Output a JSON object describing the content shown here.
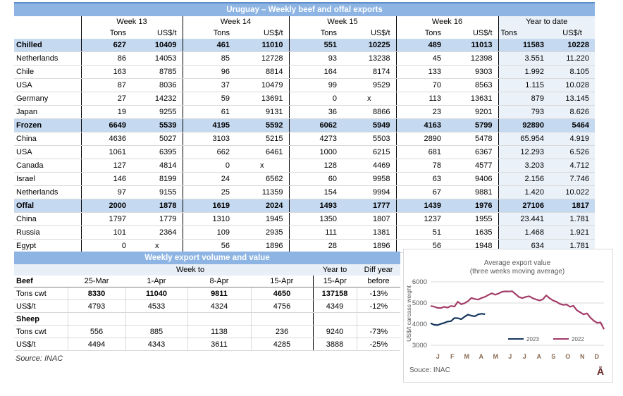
{
  "colors": {
    "title-bar": "#8DB4E2",
    "title-bar-top": "#5E8FCB",
    "title-text": "#FFFFFF",
    "section-row": "#C5D9F1",
    "ytd-bg": "#EAF1F9",
    "t2-header-bg": "#E8EFF7",
    "row-line": "#D9D9D9",
    "col-line": "#808080",
    "dark-line": "#000000",
    "chart-border": "#D9D9D9",
    "chart-text": "#595959",
    "month-label": "#8A6C54",
    "glyph": "#632423",
    "grid-line": "#D9D9D9"
  },
  "table1": {
    "title": "Uruguay – Weekly beef and offal exports",
    "week_headers": [
      "Week 13",
      "Week 14",
      "Week 15",
      "Week 16",
      "Year to date"
    ],
    "unit_headers": {
      "tons": "Tons",
      "usd": "US$/t"
    },
    "rows": [
      {
        "label": "Chilled",
        "type": "section",
        "cells": [
          "627",
          "10409",
          "461",
          "11010",
          "551",
          "10225",
          "489",
          "11013",
          "11583",
          "10228"
        ]
      },
      {
        "label": "Netherlands",
        "cells": [
          "86",
          "14053",
          "85",
          "12728",
          "93",
          "13238",
          "45",
          "12398",
          "3.551",
          "11.220"
        ]
      },
      {
        "label": "Chile",
        "cells": [
          "163",
          "8785",
          "96",
          "8814",
          "164",
          "8174",
          "133",
          "9303",
          "1.992",
          "8.105"
        ]
      },
      {
        "label": "USA",
        "cells": [
          "87",
          "8036",
          "37",
          "10479",
          "99",
          "9529",
          "70",
          "8563",
          "1.115",
          "10.028"
        ]
      },
      {
        "label": "Germany",
        "cells": [
          "27",
          "14232",
          "59",
          "13691",
          "0",
          "x",
          "113",
          "13631",
          "879",
          "13.145"
        ]
      },
      {
        "label": "Japan",
        "cells": [
          "19",
          "9255",
          "61",
          "9131",
          "36",
          "8866",
          "23",
          "9201",
          "793",
          "8.626"
        ]
      },
      {
        "label": "Frozen",
        "type": "section",
        "cells": [
          "6649",
          "5539",
          "4195",
          "5592",
          "6062",
          "5949",
          "4163",
          "5799",
          "92890",
          "5464"
        ]
      },
      {
        "label": "China",
        "cells": [
          "4636",
          "5027",
          "3103",
          "5215",
          "4273",
          "5503",
          "2890",
          "5478",
          "65.954",
          "4.919"
        ]
      },
      {
        "label": "USA",
        "cells": [
          "1061",
          "6395",
          "662",
          "6461",
          "1000",
          "6215",
          "681",
          "6367",
          "12.293",
          "6.526"
        ]
      },
      {
        "label": "Canada",
        "cells": [
          "127",
          "4814",
          "0",
          "x",
          "128",
          "4469",
          "78",
          "4577",
          "3.203",
          "4.712"
        ]
      },
      {
        "label": "Israel",
        "cells": [
          "146",
          "8199",
          "24",
          "6562",
          "60",
          "9958",
          "63",
          "9406",
          "2.156",
          "7.746"
        ]
      },
      {
        "label": "Netherlands",
        "cells": [
          "97",
          "9155",
          "25",
          "11359",
          "154",
          "9994",
          "67",
          "9881",
          "1.420",
          "10.022"
        ]
      },
      {
        "label": "Offal",
        "type": "section",
        "cells": [
          "2000",
          "1878",
          "1619",
          "2024",
          "1493",
          "1777",
          "1439",
          "1976",
          "27106",
          "1817"
        ]
      },
      {
        "label": "China",
        "cells": [
          "1797",
          "1779",
          "1310",
          "1945",
          "1350",
          "1807",
          "1237",
          "1955",
          "23.441",
          "1.781"
        ]
      },
      {
        "label": "Russia",
        "cells": [
          "101",
          "2364",
          "109",
          "2935",
          "111",
          "1381",
          "51",
          "1635",
          "1.468",
          "1.921"
        ]
      },
      {
        "label": "Egypt",
        "cells": [
          "0",
          "x",
          "56",
          "1896",
          "28",
          "1896",
          "56",
          "1948",
          "634",
          "1.781"
        ]
      }
    ]
  },
  "table2": {
    "title": "Weekly export volume and value",
    "group_headers": {
      "week_to": "Week to",
      "year_to": "Year to",
      "diff_year": "Diff year"
    },
    "col_headers": {
      "label": "Beef",
      "w1": "25-Mar",
      "w2": "1-Apr",
      "w3": "8-Apr",
      "w4": "15-Apr",
      "year": "15-Apr",
      "diff": "before"
    },
    "rows": [
      {
        "label": "Tons cwt",
        "cells": [
          "8330",
          "11040",
          "9811",
          "4650",
          "137158",
          "-13%"
        ],
        "bold_cells": [
          0,
          1,
          2,
          3,
          4
        ]
      },
      {
        "label": "US$/t",
        "cells": [
          "4793",
          "4533",
          "4324",
          "4756",
          "4349",
          "-12%"
        ],
        "bold_cells": []
      },
      {
        "label": "Sheep",
        "type": "section",
        "cells": [
          "",
          "",
          "",
          "",
          "",
          ""
        ],
        "bold_cells": []
      },
      {
        "label": "Tons cwt",
        "cells": [
          "556",
          "885",
          "1138",
          "236",
          "9240",
          "-73%"
        ],
        "bold_cells": []
      },
      {
        "label": "US$/t",
        "cells": [
          "4494",
          "4343",
          "3611",
          "4285",
          "3888",
          "-25%"
        ],
        "bold_cells": []
      }
    ],
    "source": "Source: INAC"
  },
  "chart_data": {
    "type": "line",
    "title": "Average export value",
    "subtitle": "(three weeks moving average)",
    "ylabel": "US$/t carcass weight",
    "ylim": [
      3000,
      6000
    ],
    "yticks": [
      6000,
      5000,
      4000,
      3000
    ],
    "x_axis_months": [
      "J",
      "F",
      "M",
      "A",
      "M",
      "J",
      "J",
      "A",
      "S",
      "O",
      "N",
      "D"
    ],
    "x_weeks_per_year": 52,
    "grid": "horizontal",
    "legend_position": "inside-bottom",
    "series": [
      {
        "name": "2023",
        "color": "#17375E",
        "values": [
          4040,
          3970,
          3950,
          4010,
          4060,
          4120,
          4140,
          4290,
          4280,
          4230,
          4350,
          4450,
          4400,
          4370,
          4460,
          4490,
          4470
        ]
      },
      {
        "name": "2022",
        "color": "#A23B68",
        "values": [
          4860,
          4830,
          4770,
          4760,
          4820,
          4780,
          4860,
          4830,
          5060,
          4940,
          4990,
          5090,
          5240,
          5190,
          5160,
          5240,
          5290,
          5380,
          5460,
          5390,
          5450,
          5530,
          5550,
          5545,
          5555,
          5420,
          5280,
          5230,
          5290,
          5320,
          5230,
          5170,
          5120,
          5170,
          5360,
          5230,
          5120,
          5060,
          4960,
          4910,
          4930,
          4820,
          4870,
          4660,
          4560,
          4460,
          4510,
          4310,
          4160,
          4060,
          4080,
          3760
        ]
      }
    ],
    "source": "Souce: INAC",
    "corner_glyph": "Ā"
  }
}
